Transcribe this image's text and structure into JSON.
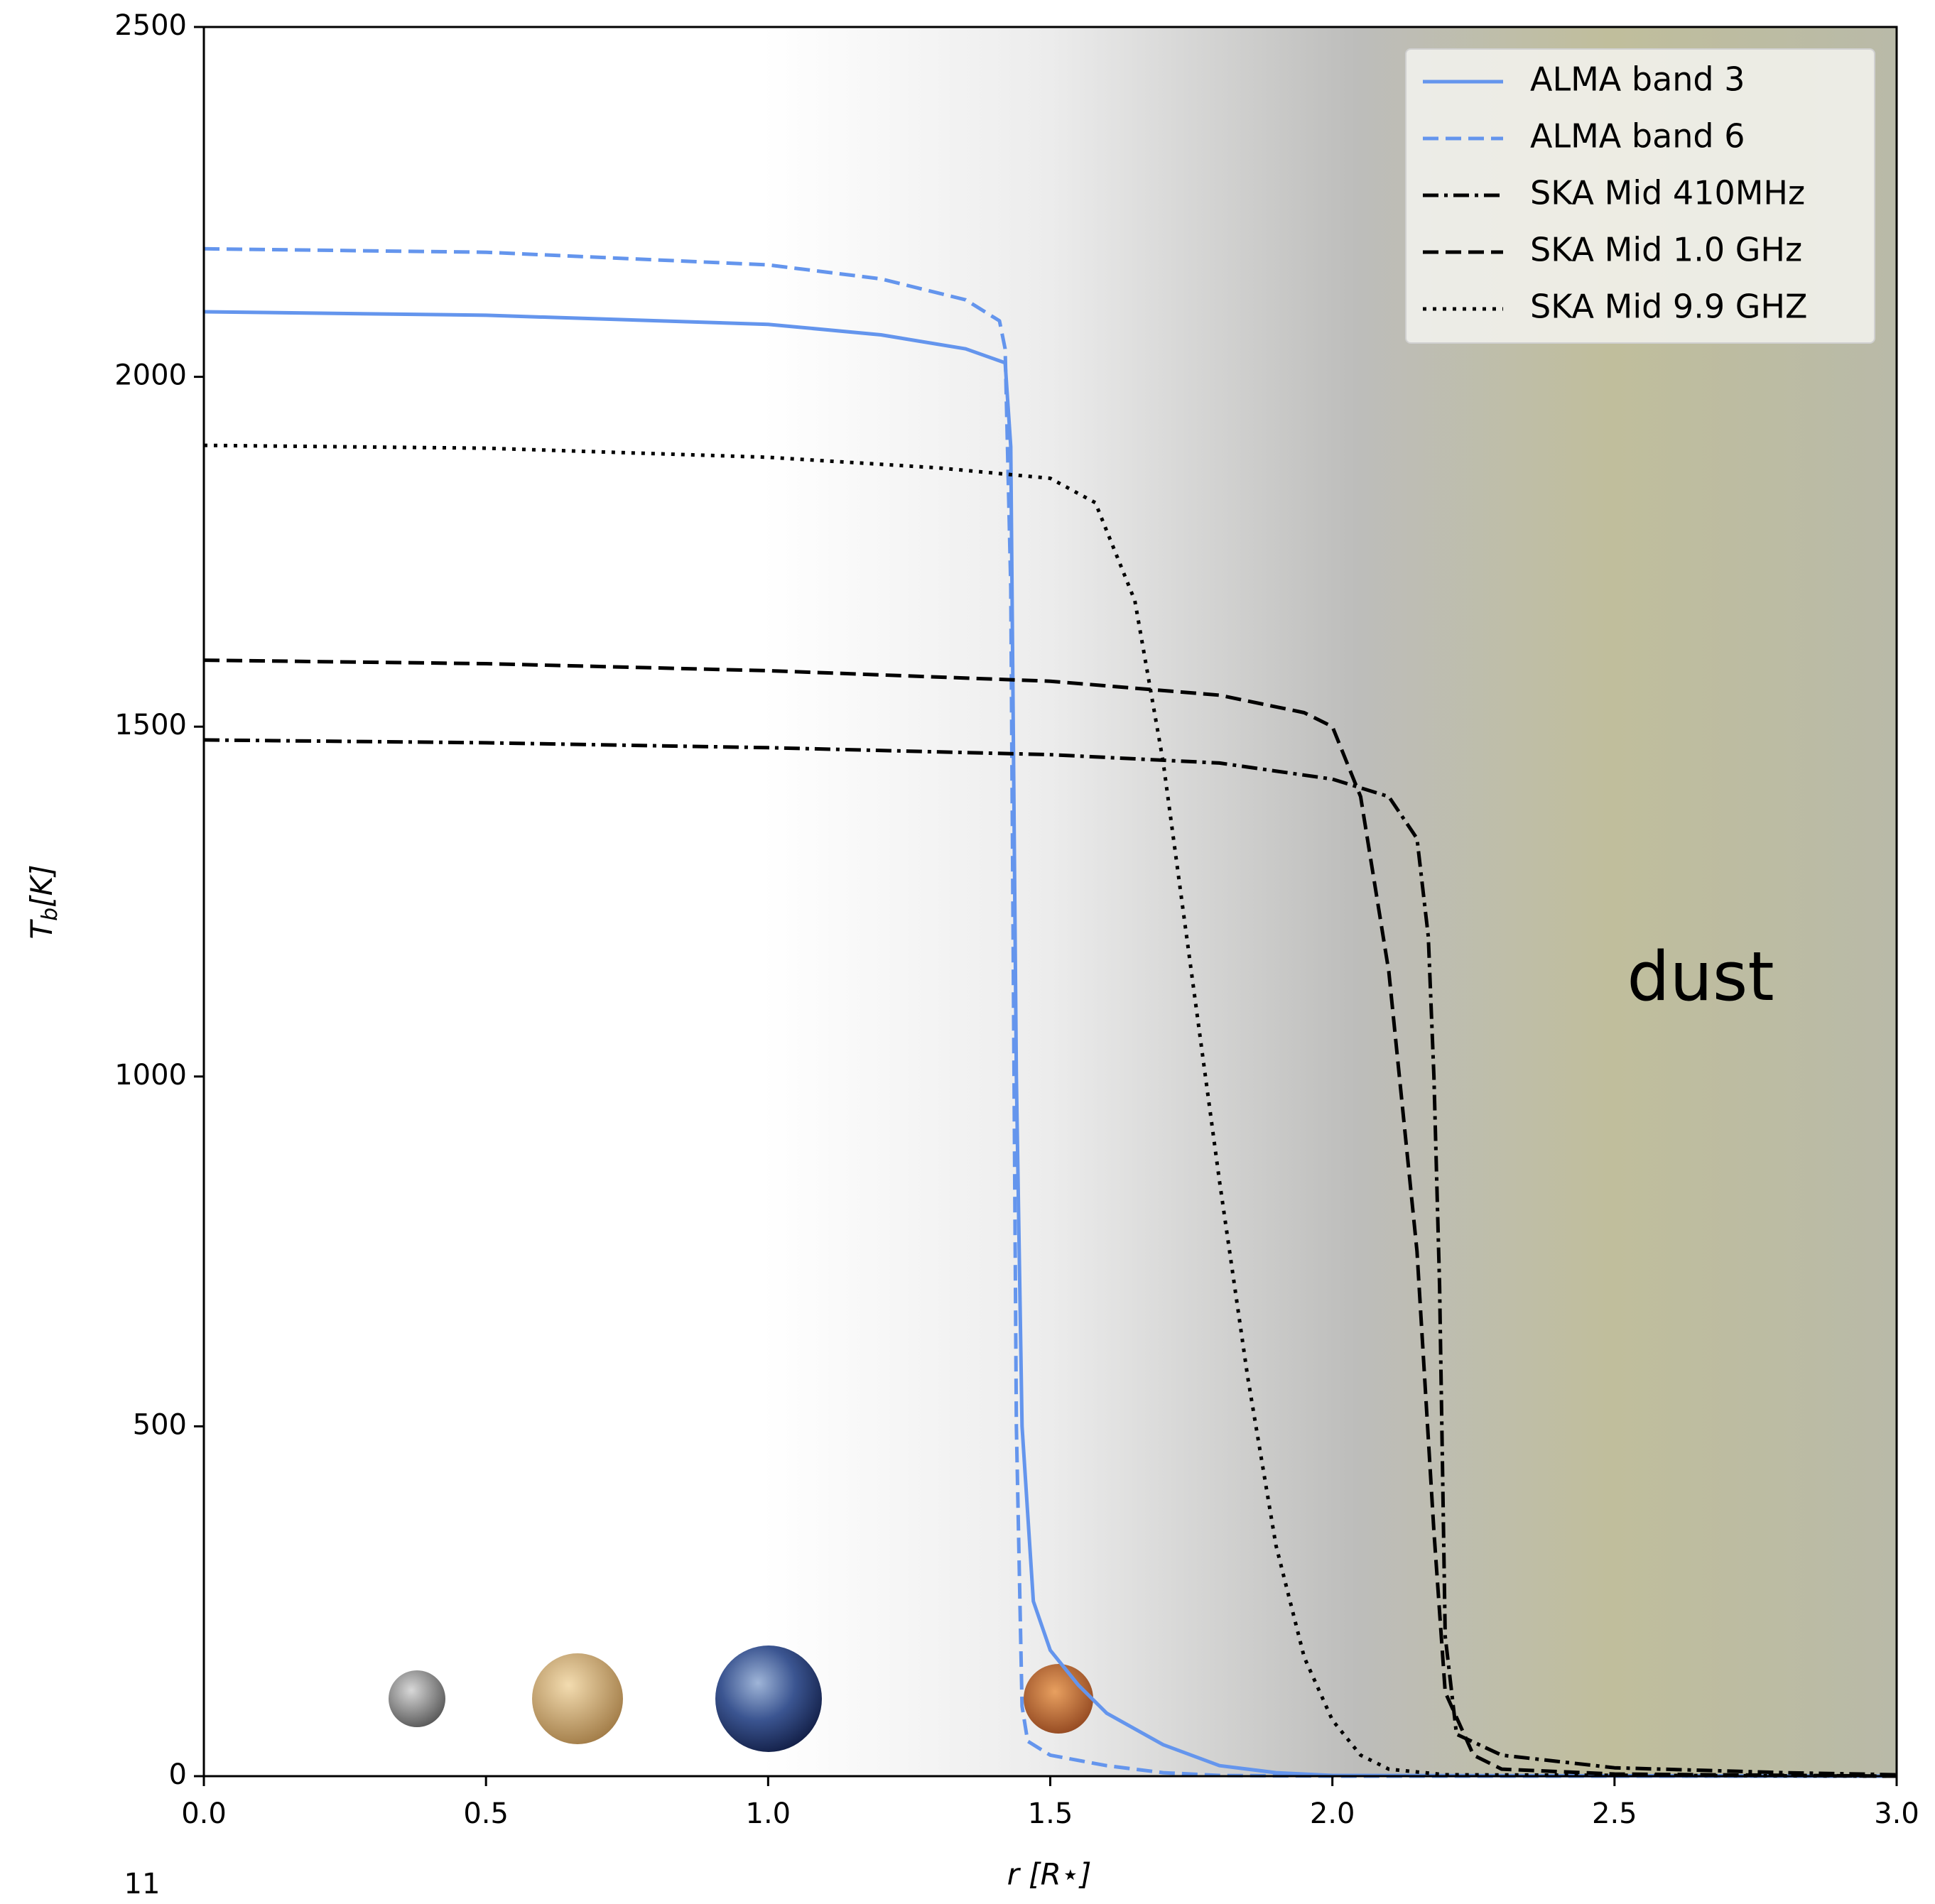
{
  "chart_data": {
    "type": "line",
    "xlabel": "r [R⋆]",
    "ylabel": {
      "symbol": "T",
      "subscript": "b",
      "unit": "[K]"
    },
    "annotation": "dust",
    "page_number": "11",
    "xlim": [
      0,
      3.0
    ],
    "ylim": [
      0,
      2500
    ],
    "xticks": [
      {
        "value": 0,
        "label": "0.0"
      },
      {
        "value": 0.5,
        "label": "0.5"
      },
      {
        "value": 1.0,
        "label": "1.0"
      },
      {
        "value": 1.5,
        "label": "1.5"
      },
      {
        "value": 2.0,
        "label": "2.0"
      },
      {
        "value": 2.5,
        "label": "2.5"
      },
      {
        "value": 3.0,
        "label": "3.0"
      }
    ],
    "yticks": [
      0,
      500,
      1000,
      1500,
      2000,
      2500
    ],
    "legend": "upper right",
    "series": [
      {
        "name": "ALMA band 3",
        "color": "#6495ed",
        "style": "solid",
        "x": [
          0,
          0.5,
          1.0,
          1.2,
          1.35,
          1.42,
          1.43,
          1.44,
          1.45,
          1.47,
          1.5,
          1.55,
          1.6,
          1.7,
          1.8,
          1.9,
          2.0,
          3.0
        ],
        "values": [
          2093,
          2088,
          2075,
          2060,
          2040,
          2020,
          1900,
          1000,
          500,
          250,
          180,
          130,
          90,
          45,
          15,
          5,
          1,
          0
        ]
      },
      {
        "name": "ALMA band 6",
        "color": "#6495ed",
        "style": "dashed",
        "x": [
          0,
          0.5,
          1.0,
          1.2,
          1.35,
          1.41,
          1.42,
          1.43,
          1.44,
          1.45,
          1.46,
          1.5,
          1.6,
          1.7,
          1.8,
          2.0,
          3.0
        ],
        "values": [
          2183,
          2178,
          2160,
          2140,
          2110,
          2080,
          2040,
          1700,
          500,
          100,
          50,
          30,
          15,
          5,
          1,
          0,
          0
        ]
      },
      {
        "name": "SKA Mid 410MHz",
        "color": "#000000",
        "style": "dashdot",
        "x": [
          0,
          0.5,
          1.0,
          1.5,
          1.8,
          2.0,
          2.1,
          2.15,
          2.17,
          2.18,
          2.19,
          2.2,
          2.22,
          2.3,
          2.5,
          2.8,
          3.0
        ],
        "values": [
          1481,
          1477,
          1470,
          1460,
          1448,
          1425,
          1400,
          1340,
          1200,
          1000,
          700,
          200,
          60,
          30,
          12,
          5,
          2
        ]
      },
      {
        "name": "SKA Mid 1.0 GHz",
        "color": "#000000",
        "style": "dashed",
        "x": [
          0,
          0.5,
          1.0,
          1.5,
          1.8,
          1.95,
          2.0,
          2.05,
          2.1,
          2.15,
          2.18,
          2.2,
          2.25,
          2.3,
          2.5,
          3.0
        ],
        "values": [
          1595,
          1590,
          1580,
          1565,
          1545,
          1520,
          1500,
          1400,
          1150,
          750,
          350,
          120,
          30,
          10,
          3,
          0
        ]
      },
      {
        "name": "SKA Mid 9.9 GHZ",
        "color": "#000000",
        "style": "dotted",
        "x": [
          0,
          0.5,
          1.0,
          1.3,
          1.5,
          1.58,
          1.65,
          1.7,
          1.75,
          1.8,
          1.85,
          1.9,
          1.95,
          2.0,
          2.05,
          2.1,
          2.2,
          3.0
        ],
        "values": [
          1902,
          1898,
          1885,
          1870,
          1855,
          1820,
          1680,
          1450,
          1150,
          850,
          570,
          330,
          170,
          80,
          30,
          10,
          2,
          0
        ]
      }
    ]
  }
}
